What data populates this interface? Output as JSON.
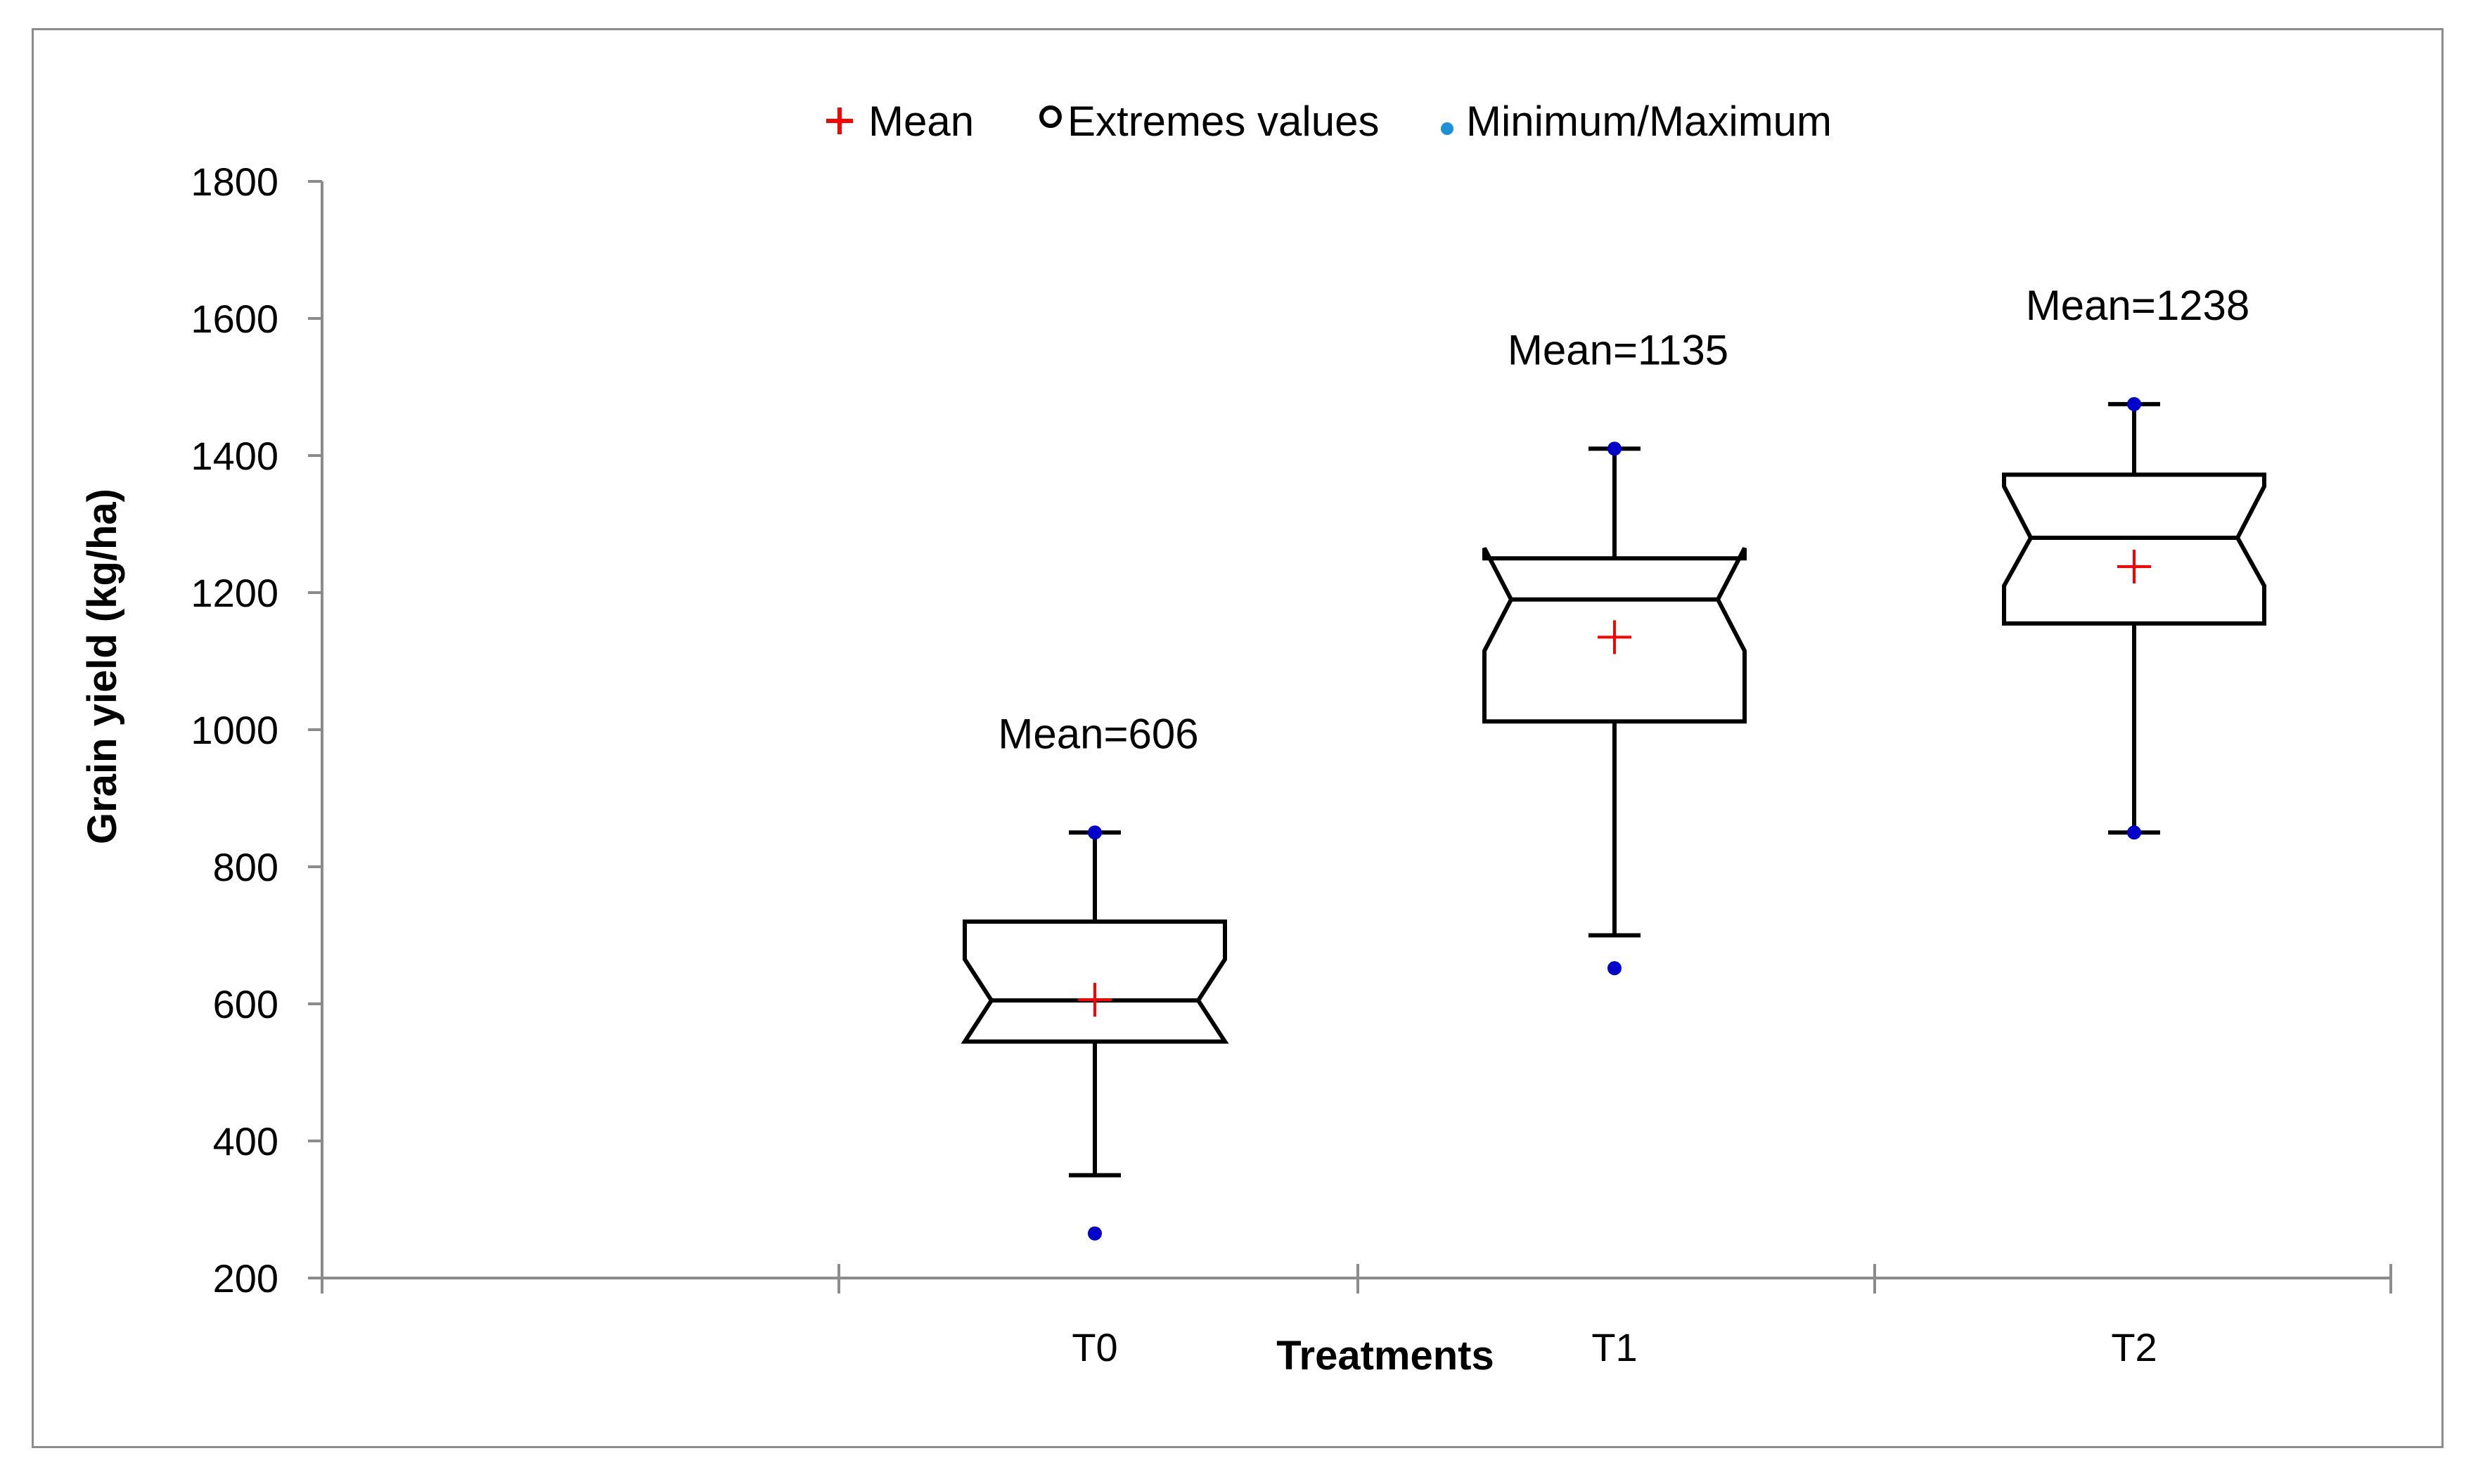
{
  "chart_data": {
    "type": "box",
    "title": "",
    "xlabel": "Treatments",
    "ylabel": "Grain yield (kg/ha)",
    "ylim": [
      200,
      1800
    ],
    "yticks": [
      200,
      400,
      600,
      800,
      1000,
      1200,
      1400,
      1600,
      1800
    ],
    "categories": [
      "T0",
      "T1",
      "T2"
    ],
    "legend": {
      "placement": "top",
      "entries": [
        {
          "symbol": "+",
          "label": "Mean",
          "color": "#ff0000"
        },
        {
          "symbol": "o",
          "label": "Extremes values",
          "color": "#000000"
        },
        {
          "symbol": "●",
          "label": "Minimum/Maximum",
          "color": "#1e90d6"
        }
      ]
    },
    "boxes": [
      {
        "category": "T0",
        "whisker_low": 350,
        "q1": 545,
        "median": 605,
        "q3": 720,
        "whisker_high": 850,
        "notch_low": 545,
        "notch_high": 665,
        "mean": 606,
        "min": 265,
        "max": 850,
        "mean_label": "Mean=606"
      },
      {
        "category": "T1",
        "whisker_low": 700,
        "q1": 1012,
        "median": 1190,
        "q3": 1250,
        "whisker_high": 1410,
        "notch_low": 1115,
        "notch_high": 1265,
        "mean": 1135,
        "min": 652,
        "max": 1410,
        "mean_label": "Mean=1135"
      },
      {
        "category": "T2",
        "whisker_low": 850,
        "q1": 1155,
        "median": 1280,
        "q3": 1372,
        "whisker_high": 1475,
        "notch_low": 1210,
        "notch_high": 1355,
        "mean": 1238,
        "min": 850,
        "max": 1475,
        "mean_label": "Mean=1238"
      }
    ],
    "colors": {
      "box": "#000000",
      "mean": "#ff0000",
      "minmax": "#0000cc",
      "axis": "#8c8c8c"
    }
  }
}
